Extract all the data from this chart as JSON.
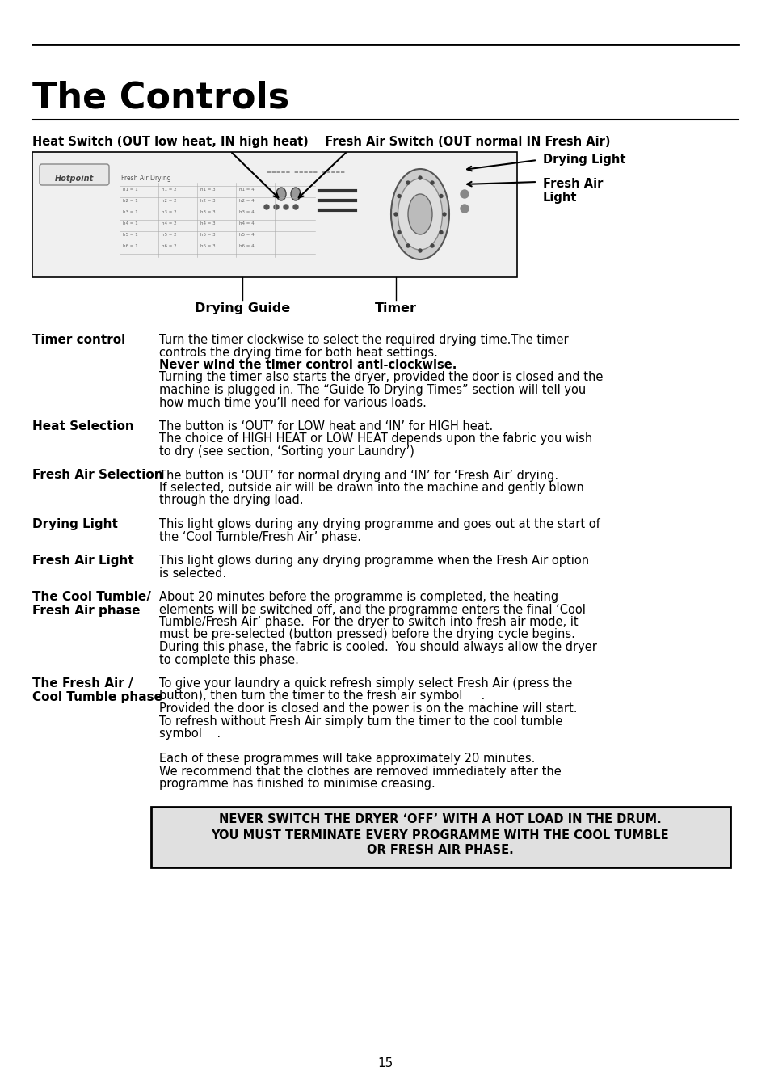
{
  "title": "The Controls",
  "page_number": "15",
  "bg_color": "#ffffff",
  "text_color": "#000000",
  "header_label": "Heat Switch (OUT low heat, IN high heat)    Fresh Air Switch (OUT normal IN Fresh Air)",
  "diagram_labels": {
    "drying_light": "Drying Light",
    "fresh_air_light": "Fresh Air\nLight",
    "drying_guide": "Drying Guide",
    "timer": "Timer"
  },
  "sections": [
    {
      "label": "Timer control",
      "text": "Turn the timer clockwise to select the required drying time.The timer\ncontrols the drying time for both heat settings.\nNever wind the timer control anti-clockwise.\nTurning the timer also starts the dryer, provided the door is closed and the\nmachine is plugged in. The “Guide To Drying Times” section will tell you\nhow much time you’ll need for various loads.",
      "bold_line": "Never wind the timer control anti-clockwise."
    },
    {
      "label": "Heat Selection",
      "text": "The button is ‘OUT’ for LOW heat and ‘IN’ for HIGH heat.\nThe choice of HIGH HEAT or LOW HEAT depends upon the fabric you wish\nto dry (see section, ‘Sorting your Laundry’)",
      "bold_line": ""
    },
    {
      "label": "Fresh Air Selection",
      "text": "The button is ‘OUT’ for normal drying and ‘IN’ for ‘Fresh Air’ drying.\nIf selected, outside air will be drawn into the machine and gently blown\nthrough the drying load.",
      "bold_line": ""
    },
    {
      "label": "Drying Light",
      "text": "This light glows during any drying programme and goes out at the start of\nthe ‘Cool Tumble/Fresh Air’ phase.",
      "bold_line": ""
    },
    {
      "label": "Fresh Air Light",
      "text": "This light glows during any drying programme when the Fresh Air option\nis selected.",
      "bold_line": ""
    },
    {
      "label": "The Cool Tumble/\nFresh Air phase",
      "text": "About 20 minutes before the programme is completed, the heating\nelements will be switched off, and the programme enters the final ‘Cool\nTumble/Fresh Air’ phase.  For the dryer to switch into fresh air mode, it\nmust be pre-selected (button pressed) before the drying cycle begins.\nDuring this phase, the fabric is cooled.  You should always allow the dryer\nto complete this phase.",
      "bold_line": ""
    },
    {
      "label": "The Fresh Air /\nCool Tumble phase",
      "text": "To give your laundry a quick refresh simply select Fresh Air (press the\nbutton), then turn the timer to the fresh air symbol     .\nProvided the door is closed and the power is on the machine will start.\nTo refresh without Fresh Air simply turn the timer to the cool tumble\nsymbol    .\n\nEach of these programmes will take approximately 20 minutes.\nWe recommend that the clothes are removed immediately after the\nprogramme has finished to minimise creasing.",
      "bold_line": ""
    }
  ],
  "warning_text": "NEVER SWITCH THE DRYER ‘OFF’ WITH A HOT LOAD IN THE DRUM.\nYOU MUST TERMINATE EVERY PROGRAMME WITH THE COOL TUMBLE\nOR FRESH AIR PHASE."
}
